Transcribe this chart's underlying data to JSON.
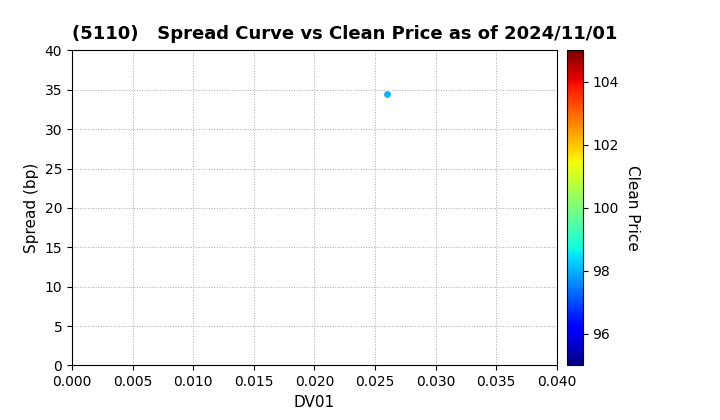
{
  "title": "(5110)   Spread Curve vs Clean Price as of 2024/11/01",
  "xlabel": "DV01",
  "ylabel": "Spread (bp)",
  "colorbar_label": "Clean Price",
  "xlim": [
    0.0,
    0.04
  ],
  "ylim": [
    0,
    40
  ],
  "xticks": [
    0.0,
    0.005,
    0.01,
    0.015,
    0.02,
    0.025,
    0.03,
    0.035,
    0.04
  ],
  "yticks": [
    0,
    5,
    10,
    15,
    20,
    25,
    30,
    35,
    40
  ],
  "colorbar_ticks": [
    96,
    98,
    100,
    102,
    104
  ],
  "colorbar_vmin": 95,
  "colorbar_vmax": 105,
  "scatter_x": [
    0.026
  ],
  "scatter_y": [
    34.5
  ],
  "scatter_color": [
    98.0
  ],
  "scatter_size": 15,
  "background_color": "#ffffff",
  "grid_color": "#aaaaaa",
  "title_fontsize": 13,
  "axis_fontsize": 11,
  "tick_fontsize": 10,
  "colorbar_label_fontsize": 11
}
